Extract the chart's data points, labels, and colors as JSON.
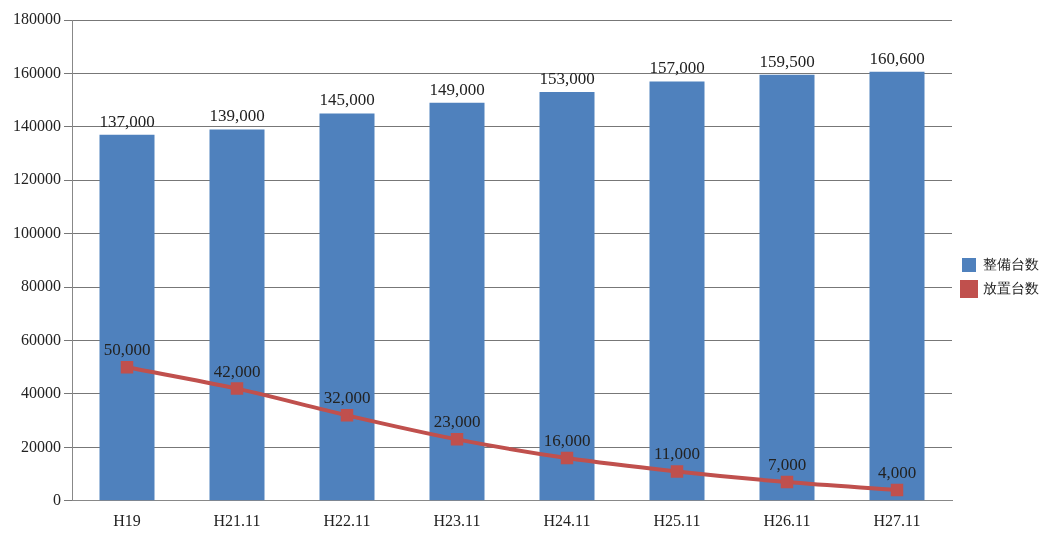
{
  "chart_data": {
    "type": "bar",
    "categories": [
      "H19",
      "H21.11",
      "H22.11",
      "H23.11",
      "H24.11",
      "H25.11",
      "H26.11",
      "H27.11"
    ],
    "series": [
      {
        "name": "整備台数",
        "color": "#4f81bd",
        "values": [
          137000,
          139000,
          145000,
          149000,
          153000,
          157000,
          159500,
          160600
        ],
        "value_labels": [
          "137,000",
          "139,000",
          "145,000",
          "149,000",
          "153,000",
          "157,000",
          "159,500",
          "160,600"
        ]
      },
      {
        "name": "放置台数",
        "type": "line",
        "color": "#c0504d",
        "marker": "square",
        "values": [
          50000,
          42000,
          32000,
          23000,
          16000,
          11000,
          7000,
          4000
        ],
        "value_labels": [
          "50,000",
          "42,000",
          "32,000",
          "23,000",
          "16,000",
          "11,000",
          "7,000",
          "4,000"
        ]
      }
    ],
    "ylim": [
      0,
      180000
    ],
    "yticks": [
      0,
      20000,
      40000,
      60000,
      80000,
      100000,
      120000,
      140000,
      160000,
      180000
    ],
    "grid": "y",
    "legend": "right"
  }
}
